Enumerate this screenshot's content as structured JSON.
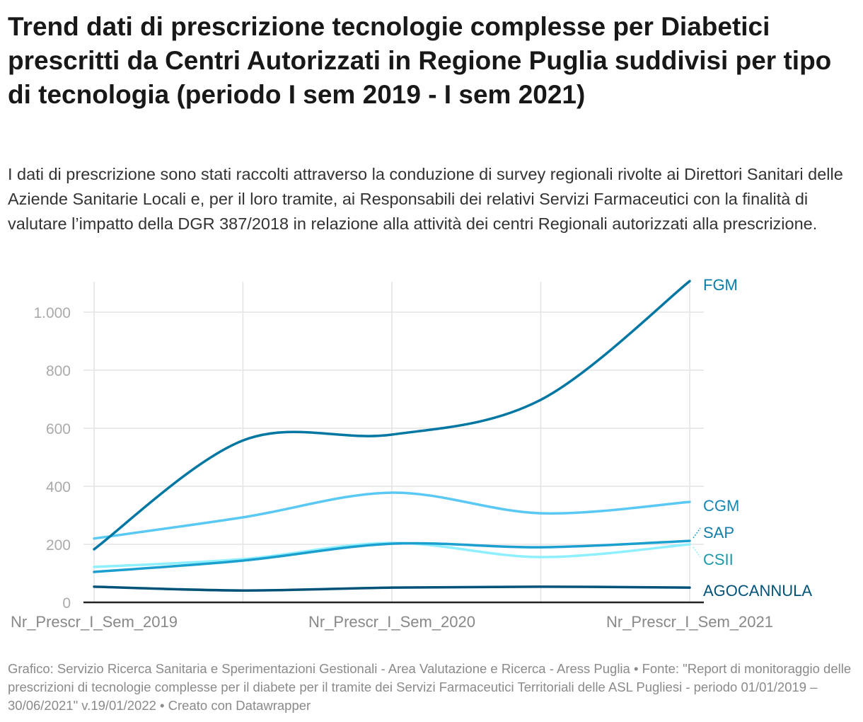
{
  "title": "Trend dati di prescrizione tecnologie complesse per Diabetici prescritti da Centri Autorizzati in Regione Puglia suddivisi per tipo di tecnologia (periodo I sem 2019 - I sem 2021)",
  "description": "I dati di prescrizione sono stati raccolti attraverso la conduzione di survey regionali rivolte ai Direttori Sanitari delle Aziende Sanitarie Locali e, per il loro tramite, ai Responsabili dei relativi Servizi Farmaceutici con la finalità di valutare l’impatto della DGR 387/2018 in relazione alla attività dei centri Regionali autorizzati alla prescrizione.",
  "footer": "Grafico: Servizio Ricerca Sanitaria e Sperimentazioni Gestionali - Area Valutazione e Ricerca - Aress Puglia • Fonte: \"Report di monitoraggio delle prescrizioni di tecnologie complesse per il diabete per il tramite dei Servizi Farmaceutici Territoriali delle ASL Pugliesi - periodo 01/01/2019 – 30/06/2021\" v.19/01/2022 • Creato con Datawrapper",
  "chart_data": {
    "type": "line",
    "title": "",
    "xlabel": "",
    "ylabel": "",
    "x_tick_labels": [
      "Nr_Prescr_I_Sem_2019",
      "",
      "Nr_Prescr_I_Sem_2020",
      "",
      "Nr_Prescr_I_Sem_2021"
    ],
    "ylim": [
      0,
      1100
    ],
    "y_ticks": [
      0,
      200,
      400,
      600,
      800,
      1000
    ],
    "y_tick_labels": [
      "0",
      "200",
      "400",
      "600",
      "800",
      "1.000"
    ],
    "grid": true,
    "legend": "direct-labels-right",
    "series": [
      {
        "name": "FGM",
        "color": "#0077a3",
        "label_color": "#0a7ea8",
        "values": [
          183,
          558,
          578,
          698,
          1107
        ]
      },
      {
        "name": "CGM",
        "color": "#5ac8f5",
        "label_color": "#1487b4",
        "values": [
          220,
          293,
          378,
          307,
          346
        ]
      },
      {
        "name": "SAP",
        "color": "#1a9fcf",
        "label_color": "#137fa8",
        "values": [
          105,
          144,
          202,
          190,
          212
        ]
      },
      {
        "name": "CSII",
        "color": "#8eefff",
        "label_color": "#1a9aa8",
        "values": [
          122,
          149,
          205,
          156,
          200
        ]
      },
      {
        "name": "AGOCANNULA",
        "color": "#005279",
        "label_color": "#005279",
        "values": [
          54,
          41,
          51,
          54,
          51
        ]
      }
    ]
  }
}
